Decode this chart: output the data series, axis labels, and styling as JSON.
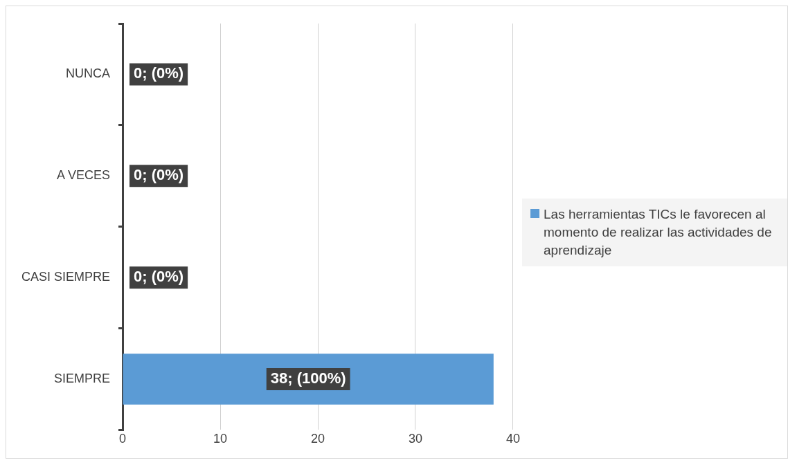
{
  "chart_data": {
    "type": "bar",
    "orientation": "horizontal",
    "categories": [
      "NUNCA",
      "A VECES",
      "CASI SIEMPRE",
      "SIEMPRE"
    ],
    "series": [
      {
        "name": "Las herramientas TICs le favorecen al momento de realizar las actividades de aprendizaje",
        "color": "#5b9bd5",
        "values": [
          0,
          0,
          0,
          38
        ],
        "value_labels": [
          "0; (0%)",
          "0; (0%)",
          "0; (0%)",
          "38; (100%)"
        ]
      }
    ],
    "xlim": [
      0,
      40
    ],
    "xticks": [
      0,
      10,
      20,
      30,
      40
    ],
    "grid": "x",
    "legend": "right"
  }
}
